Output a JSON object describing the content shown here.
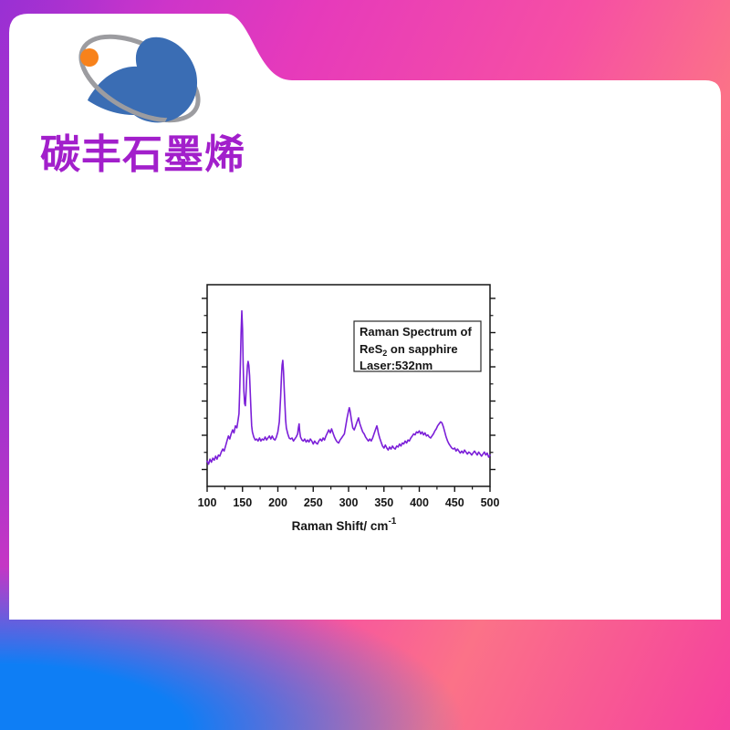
{
  "brand": {
    "name": "碳丰石墨烯",
    "text_color": "#A21FCB",
    "logo": {
      "bird_color": "#3A6DB4",
      "ring_color": "#9C9CA0",
      "dot_color": "#F8821B"
    }
  },
  "background": {
    "card_color": "#FFFFFF",
    "gradient_top_left": "#9B2FD5",
    "gradient_magenta": "#E63ABB",
    "gradient_salmon": "#FB7288",
    "gradient_bottom_right": "#F5419E",
    "gradient_bottom_left_blue": "#0E7EF5"
  },
  "chart_data": {
    "type": "line",
    "title": "",
    "xlabel_pre": "Raman Shift/ cm",
    "xlabel_sup": "-1",
    "ylabel": "",
    "xlim": [
      100,
      500
    ],
    "ylim": [
      0,
      1
    ],
    "x_ticks": [
      100,
      150,
      200,
      250,
      300,
      350,
      400,
      450,
      500
    ],
    "x_minor_step": 25,
    "y_ticks_unlabeled": 6,
    "grid": false,
    "legend_position": "upper right",
    "annotation": {
      "line1": "Raman Spectrum of",
      "line2_pre": "ReS",
      "line2_sub": "2",
      "line2_post": " on sapphire",
      "line3": "Laser:532nm"
    },
    "line_color": "#7B1FD8",
    "peaks_cm1": [
      150,
      159,
      207,
      230,
      276,
      301,
      314,
      340,
      398,
      431
    ],
    "series": [
      {
        "name": "ReS2 on sapphire (532 nm)",
        "points": [
          [
            100,
            0.125
          ],
          [
            102,
            0.11
          ],
          [
            104,
            0.135
          ],
          [
            106,
            0.12
          ],
          [
            108,
            0.14
          ],
          [
            110,
            0.13
          ],
          [
            112,
            0.15
          ],
          [
            114,
            0.135
          ],
          [
            116,
            0.155
          ],
          [
            118,
            0.15
          ],
          [
            120,
            0.17
          ],
          [
            122,
            0.185
          ],
          [
            124,
            0.175
          ],
          [
            126,
            0.2
          ],
          [
            128,
            0.225
          ],
          [
            130,
            0.25
          ],
          [
            132,
            0.235
          ],
          [
            134,
            0.26
          ],
          [
            136,
            0.28
          ],
          [
            138,
            0.265
          ],
          [
            140,
            0.3
          ],
          [
            142,
            0.29
          ],
          [
            144,
            0.335
          ],
          [
            145,
            0.36
          ],
          [
            146,
            0.46
          ],
          [
            147,
            0.6
          ],
          [
            148,
            0.76
          ],
          [
            149,
            0.87
          ],
          [
            150,
            0.78
          ],
          [
            151,
            0.6
          ],
          [
            152,
            0.47
          ],
          [
            153,
            0.41
          ],
          [
            154,
            0.4
          ],
          [
            155,
            0.46
          ],
          [
            156,
            0.54
          ],
          [
            157,
            0.6
          ],
          [
            158,
            0.62
          ],
          [
            159,
            0.6
          ],
          [
            160,
            0.55
          ],
          [
            161,
            0.46
          ],
          [
            162,
            0.37
          ],
          [
            163,
            0.3
          ],
          [
            164,
            0.27
          ],
          [
            166,
            0.245
          ],
          [
            168,
            0.23
          ],
          [
            170,
            0.235
          ],
          [
            172,
            0.225
          ],
          [
            174,
            0.24
          ],
          [
            176,
            0.225
          ],
          [
            178,
            0.235
          ],
          [
            180,
            0.23
          ],
          [
            182,
            0.245
          ],
          [
            184,
            0.23
          ],
          [
            186,
            0.24
          ],
          [
            188,
            0.25
          ],
          [
            190,
            0.235
          ],
          [
            192,
            0.25
          ],
          [
            194,
            0.235
          ],
          [
            196,
            0.23
          ],
          [
            198,
            0.245
          ],
          [
            200,
            0.27
          ],
          [
            202,
            0.32
          ],
          [
            203,
            0.38
          ],
          [
            204,
            0.45
          ],
          [
            205,
            0.54
          ],
          [
            206,
            0.6
          ],
          [
            207,
            0.625
          ],
          [
            208,
            0.57
          ],
          [
            209,
            0.48
          ],
          [
            210,
            0.4
          ],
          [
            211,
            0.33
          ],
          [
            212,
            0.29
          ],
          [
            214,
            0.26
          ],
          [
            216,
            0.24
          ],
          [
            218,
            0.235
          ],
          [
            220,
            0.24
          ],
          [
            222,
            0.225
          ],
          [
            224,
            0.235
          ],
          [
            226,
            0.245
          ],
          [
            228,
            0.26
          ],
          [
            229,
            0.29
          ],
          [
            230,
            0.31
          ],
          [
            231,
            0.27
          ],
          [
            232,
            0.245
          ],
          [
            234,
            0.23
          ],
          [
            236,
            0.225
          ],
          [
            238,
            0.235
          ],
          [
            240,
            0.22
          ],
          [
            242,
            0.23
          ],
          [
            244,
            0.22
          ],
          [
            246,
            0.235
          ],
          [
            248,
            0.225
          ],
          [
            250,
            0.21
          ],
          [
            252,
            0.225
          ],
          [
            254,
            0.215
          ],
          [
            256,
            0.21
          ],
          [
            258,
            0.225
          ],
          [
            260,
            0.235
          ],
          [
            262,
            0.225
          ],
          [
            264,
            0.24
          ],
          [
            266,
            0.23
          ],
          [
            268,
            0.25
          ],
          [
            270,
            0.265
          ],
          [
            272,
            0.28
          ],
          [
            274,
            0.265
          ],
          [
            276,
            0.285
          ],
          [
            278,
            0.265
          ],
          [
            280,
            0.245
          ],
          [
            282,
            0.23
          ],
          [
            284,
            0.22
          ],
          [
            286,
            0.215
          ],
          [
            288,
            0.23
          ],
          [
            290,
            0.24
          ],
          [
            292,
            0.25
          ],
          [
            294,
            0.26
          ],
          [
            296,
            0.3
          ],
          [
            298,
            0.34
          ],
          [
            300,
            0.375
          ],
          [
            301,
            0.39
          ],
          [
            302,
            0.375
          ],
          [
            304,
            0.33
          ],
          [
            306,
            0.29
          ],
          [
            308,
            0.28
          ],
          [
            310,
            0.3
          ],
          [
            312,
            0.32
          ],
          [
            314,
            0.34
          ],
          [
            315,
            0.325
          ],
          [
            316,
            0.31
          ],
          [
            318,
            0.29
          ],
          [
            320,
            0.27
          ],
          [
            322,
            0.26
          ],
          [
            324,
            0.245
          ],
          [
            326,
            0.235
          ],
          [
            328,
            0.225
          ],
          [
            330,
            0.235
          ],
          [
            332,
            0.225
          ],
          [
            334,
            0.24
          ],
          [
            336,
            0.26
          ],
          [
            338,
            0.28
          ],
          [
            340,
            0.3
          ],
          [
            341,
            0.285
          ],
          [
            342,
            0.265
          ],
          [
            344,
            0.24
          ],
          [
            346,
            0.22
          ],
          [
            348,
            0.2
          ],
          [
            350,
            0.19
          ],
          [
            352,
            0.205
          ],
          [
            354,
            0.19
          ],
          [
            356,
            0.18
          ],
          [
            358,
            0.195
          ],
          [
            360,
            0.185
          ],
          [
            362,
            0.2
          ],
          [
            364,
            0.19
          ],
          [
            366,
            0.185
          ],
          [
            368,
            0.2
          ],
          [
            370,
            0.195
          ],
          [
            372,
            0.21
          ],
          [
            374,
            0.2
          ],
          [
            376,
            0.215
          ],
          [
            378,
            0.21
          ],
          [
            380,
            0.225
          ],
          [
            382,
            0.215
          ],
          [
            384,
            0.23
          ],
          [
            386,
            0.225
          ],
          [
            388,
            0.24
          ],
          [
            390,
            0.25
          ],
          [
            392,
            0.26
          ],
          [
            394,
            0.255
          ],
          [
            396,
            0.27
          ],
          [
            398,
            0.265
          ],
          [
            400,
            0.275
          ],
          [
            402,
            0.26
          ],
          [
            404,
            0.27
          ],
          [
            406,
            0.255
          ],
          [
            408,
            0.265
          ],
          [
            410,
            0.25
          ],
          [
            412,
            0.255
          ],
          [
            414,
            0.245
          ],
          [
            416,
            0.24
          ],
          [
            418,
            0.25
          ],
          [
            420,
            0.26
          ],
          [
            422,
            0.275
          ],
          [
            424,
            0.285
          ],
          [
            426,
            0.3
          ],
          [
            428,
            0.31
          ],
          [
            430,
            0.32
          ],
          [
            432,
            0.315
          ],
          [
            434,
            0.295
          ],
          [
            436,
            0.27
          ],
          [
            438,
            0.245
          ],
          [
            440,
            0.225
          ],
          [
            442,
            0.21
          ],
          [
            444,
            0.2
          ],
          [
            446,
            0.19
          ],
          [
            448,
            0.185
          ],
          [
            450,
            0.19
          ],
          [
            452,
            0.175
          ],
          [
            454,
            0.185
          ],
          [
            456,
            0.175
          ],
          [
            458,
            0.165
          ],
          [
            460,
            0.175
          ],
          [
            462,
            0.165
          ],
          [
            464,
            0.18
          ],
          [
            466,
            0.17
          ],
          [
            468,
            0.16
          ],
          [
            470,
            0.17
          ],
          [
            472,
            0.165
          ],
          [
            474,
            0.155
          ],
          [
            476,
            0.165
          ],
          [
            478,
            0.175
          ],
          [
            480,
            0.165
          ],
          [
            482,
            0.155
          ],
          [
            484,
            0.17
          ],
          [
            486,
            0.16
          ],
          [
            488,
            0.15
          ],
          [
            490,
            0.16
          ],
          [
            492,
            0.17
          ],
          [
            494,
            0.155
          ],
          [
            496,
            0.165
          ],
          [
            498,
            0.145
          ],
          [
            500,
            0.155
          ]
        ]
      }
    ]
  }
}
